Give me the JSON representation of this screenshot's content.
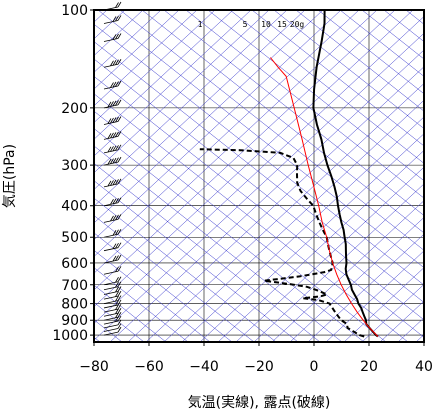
{
  "chart_data": {
    "type": "line",
    "title": "",
    "xlabel": "気温(実線), 露点(破線)",
    "ylabel": "気圧(hPa)",
    "x_axis": {
      "min": -80,
      "max": 40,
      "ticks": [
        -80,
        -60,
        -40,
        -20,
        0,
        20,
        40
      ]
    },
    "y_axis": {
      "scale": "log",
      "min": 100,
      "max": 1050,
      "ticks": [
        100,
        200,
        300,
        400,
        500,
        600,
        700,
        800,
        900,
        1000
      ]
    },
    "grid": true,
    "skew": "45deg",
    "mixing_ratio_labels": [
      "1",
      "5",
      "10",
      "15",
      "20g"
    ],
    "series": [
      {
        "name": "",
        "style": "solid",
        "color": "#000000",
        "points": [
          [
            1010,
            22
          ],
          [
            1000,
            21
          ],
          [
            975,
            19
          ],
          [
            950,
            17
          ],
          [
            925,
            15
          ],
          [
            900,
            14
          ],
          [
            875,
            12.5
          ],
          [
            850,
            11
          ],
          [
            825,
            9.5
          ],
          [
            800,
            7.5
          ],
          [
            775,
            6
          ],
          [
            750,
            4
          ],
          [
            725,
            2
          ],
          [
            700,
            0.5
          ],
          [
            675,
            -1.5
          ],
          [
            650,
            -3.5
          ],
          [
            625,
            -5
          ],
          [
            600,
            -6
          ],
          [
            575,
            -7.5
          ],
          [
            550,
            -9
          ],
          [
            525,
            -10.5
          ],
          [
            500,
            -12.5
          ],
          [
            475,
            -14.5
          ],
          [
            450,
            -17
          ],
          [
            425,
            -19.5
          ],
          [
            400,
            -22
          ],
          [
            375,
            -24.5
          ],
          [
            350,
            -27.5
          ],
          [
            325,
            -31
          ],
          [
            300,
            -35
          ],
          [
            275,
            -39
          ],
          [
            250,
            -43
          ],
          [
            225,
            -48
          ],
          [
            200,
            -53
          ],
          [
            175,
            -57
          ],
          [
            150,
            -61
          ],
          [
            125,
            -65
          ],
          [
            110,
            -68
          ],
          [
            100,
            -71
          ]
        ]
      },
      {
        "name": "",
        "style": "dashed",
        "color": "#000000",
        "points": [
          [
            1010,
            17
          ],
          [
            1000,
            15
          ],
          [
            975,
            12
          ],
          [
            950,
            9
          ],
          [
            925,
            8
          ],
          [
            900,
            5
          ],
          [
            875,
            3
          ],
          [
            850,
            1
          ],
          [
            825,
            -1
          ],
          [
            800,
            -3
          ],
          [
            780,
            -8
          ],
          [
            770,
            -14
          ],
          [
            760,
            -8
          ],
          [
            750,
            -6
          ],
          [
            730,
            -10
          ],
          [
            710,
            -15
          ],
          [
            700,
            -20
          ],
          [
            690,
            -26
          ],
          [
            680,
            -32
          ],
          [
            670,
            -26
          ],
          [
            660,
            -20
          ],
          [
            650,
            -16
          ],
          [
            640,
            -12
          ],
          [
            630,
            -10
          ],
          [
            600,
            -11
          ],
          [
            575,
            -13
          ],
          [
            550,
            -15
          ],
          [
            525,
            -17
          ],
          [
            500,
            -19
          ],
          [
            475,
            -22
          ],
          [
            450,
            -25
          ],
          [
            425,
            -28
          ],
          [
            400,
            -31
          ],
          [
            380,
            -35
          ],
          [
            360,
            -39
          ],
          [
            340,
            -42
          ],
          [
            320,
            -44
          ],
          [
            300,
            -46
          ],
          [
            285,
            -49
          ],
          [
            275,
            -55
          ],
          [
            270,
            -70
          ],
          [
            268,
            -85
          ]
        ]
      },
      {
        "name": "",
        "style": "solid",
        "color": "#ff0000",
        "points": [
          [
            1010,
            22
          ],
          [
            950,
            17
          ],
          [
            900,
            13
          ],
          [
            850,
            9
          ],
          [
            800,
            5
          ],
          [
            750,
            1
          ],
          [
            700,
            -3
          ],
          [
            650,
            -7
          ],
          [
            600,
            -11
          ],
          [
            550,
            -15
          ],
          [
            500,
            -19
          ],
          [
            450,
            -24
          ],
          [
            400,
            -29
          ],
          [
            350,
            -35
          ],
          [
            300,
            -42
          ],
          [
            250,
            -50
          ],
          [
            200,
            -60
          ],
          [
            175,
            -66
          ],
          [
            160,
            -70
          ],
          [
            150,
            -75
          ],
          [
            140,
            -80
          ]
        ]
      }
    ],
    "wind_profile": {
      "pressures": [
        1000,
        975,
        950,
        925,
        900,
        875,
        850,
        825,
        800,
        775,
        750,
        725,
        700,
        650,
        600,
        550,
        500,
        450,
        400,
        350,
        300,
        275,
        250,
        225,
        200,
        175,
        150,
        125,
        110,
        100
      ],
      "speed_kt": [
        5,
        10,
        10,
        15,
        15,
        15,
        20,
        20,
        20,
        20,
        15,
        15,
        15,
        20,
        25,
        25,
        30,
        35,
        40,
        45,
        50,
        50,
        55,
        50,
        45,
        40,
        35,
        30,
        25,
        20
      ]
    }
  }
}
